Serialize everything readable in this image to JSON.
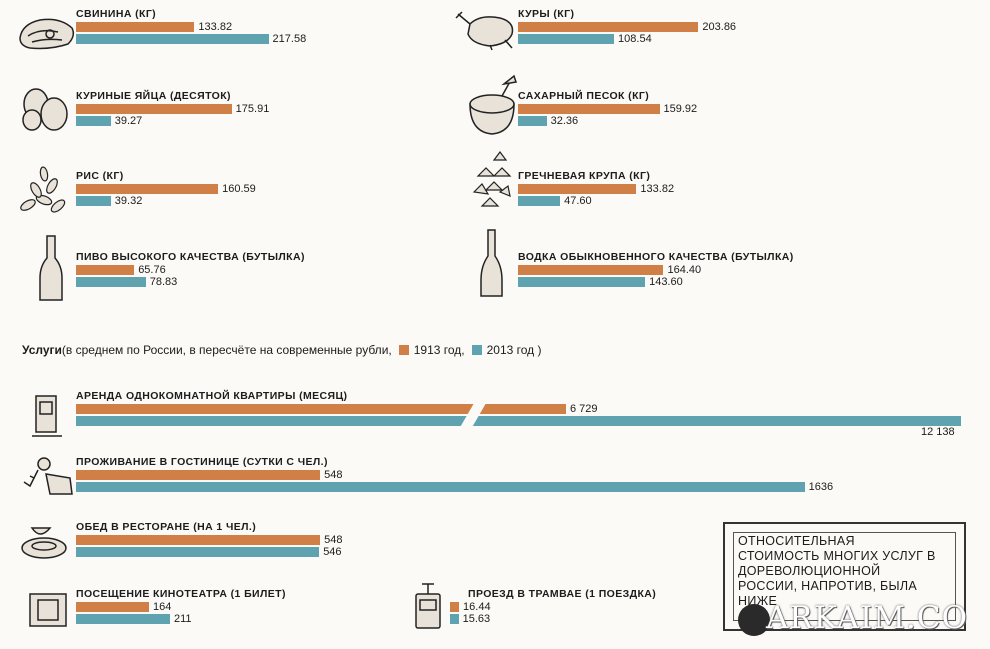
{
  "colors": {
    "c1913": "#d07f46",
    "c2013": "#5fa2b0"
  },
  "chart_data": [
    {
      "type": "bar",
      "categories": [
        "СВИНИНА (КГ)",
        "КУРЫ (КГ)",
        "КУРИНЫЕ ЯЙЦА (ДЕСЯТОК)",
        "САХАРНЫЙ ПЕСОК (КГ)",
        "РИС (КГ)",
        "ГРЕЧНЕВАЯ КРУПА (КГ)",
        "ПИВО ВЫСОКОГО КАЧЕСТВА (БУТЫЛКА)",
        "ВОДКА ОБЫКНОВЕННОГО КАЧЕСТВА (БУТЫЛКА)"
      ],
      "icons": [
        "pork-icon",
        "chicken-icon",
        "eggs-icon",
        "sugar-icon",
        "rice-icon",
        "buckwheat-icon",
        "beer-bottle-icon",
        "vodka-bottle-icon"
      ],
      "series": [
        {
          "name": "1913 год",
          "values": [
            133.82,
            203.86,
            175.91,
            159.92,
            160.59,
            133.82,
            65.76,
            164.4
          ],
          "labels": [
            "133.82",
            "203.86",
            "175.91",
            "159.92",
            "160.59",
            "133.82",
            "65.76",
            "164.40"
          ]
        },
        {
          "name": "2013 год",
          "values": [
            217.58,
            108.54,
            39.27,
            32.36,
            39.32,
            47.6,
            78.83,
            143.6
          ],
          "labels": [
            "217.58",
            "108.54",
            "39.27",
            "32.36",
            "39.32",
            "47.60",
            "78.83",
            "143.60"
          ]
        }
      ]
    },
    {
      "type": "bar",
      "categories": [
        "АРЕНДА ОДНОКОМНАТНОЙ КВАРТИРЫ (МЕСЯЦ)",
        "ПРОЖИВАНИЕ В ГОСТИНИЦЕ (СУТКИ С ЧЕЛ.)",
        "ОБЕД В РЕСТОРАНЕ (НА 1 ЧЕЛ.)",
        "ПОСЕЩЕНИЕ КИНОТЕАТРА (1 БИЛЕТ)",
        "ПРОЕЗД В ТРАМВАЕ (1 ПОЕЗДКА)"
      ],
      "icons": [
        "apartment-door-icon",
        "hotel-key-icon",
        "restaurant-plate-icon",
        "film-strip-icon",
        "tram-icon"
      ],
      "series": [
        {
          "name": "1913 год",
          "values": [
            6729,
            548,
            548,
            164,
            16.44
          ],
          "labels": [
            "6 729",
            "548",
            "548",
            "164",
            "16.44"
          ]
        },
        {
          "name": "2013 год",
          "values": [
            12138,
            1636,
            546,
            211,
            15.63
          ],
          "labels": [
            "12 138",
            "1636",
            "546",
            "211",
            "15.63"
          ]
        }
      ]
    }
  ],
  "legend": {
    "title": "Услуги",
    "text": " (в среднем по России, в пересчёте на современные рубли,",
    "item_1913": "1913 год,",
    "item_2013": "2013 год )"
  },
  "note": {
    "text": "ОТНОСИТЕЛЬНАЯ СТОИМОСТЬ МНОГИХ УСЛУГ В ДОРЕВОЛЮЦИОННОЙ РОССИИ, НАПРОТИВ, БЫЛА НИЖЕ"
  },
  "watermark": {
    "text": "ARKAIM.CO"
  }
}
